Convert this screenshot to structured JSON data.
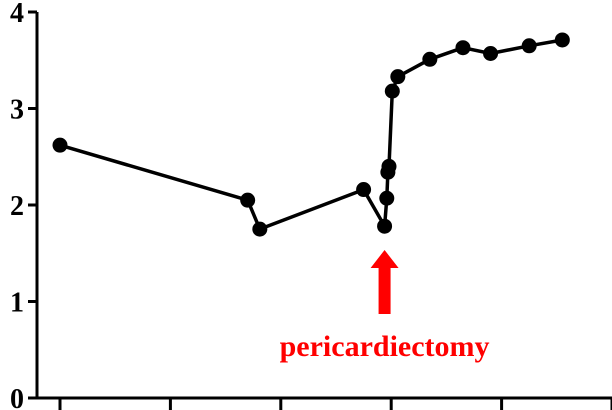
{
  "chart_data": {
    "type": "line",
    "title": "",
    "xlabel": "",
    "ylabel": "",
    "ylim": [
      0,
      4
    ],
    "xlim": [
      0,
      50
    ],
    "y_ticks": [
      0,
      1,
      2,
      3,
      4
    ],
    "y_tick_labels": [
      "0",
      "1",
      "2",
      "3",
      "4"
    ],
    "x_ticks": [
      0,
      10,
      20,
      30,
      40,
      50
    ],
    "grid": false,
    "legend": "none",
    "series": [
      {
        "color": "#000000",
        "marker": "circle",
        "points": [
          {
            "x": 0.0,
            "y": 2.62
          },
          {
            "x": 17.0,
            "y": 2.05
          },
          {
            "x": 18.1,
            "y": 1.75
          },
          {
            "x": 27.5,
            "y": 2.16
          },
          {
            "x": 29.4,
            "y": 1.78
          },
          {
            "x": 29.6,
            "y": 2.07
          },
          {
            "x": 29.7,
            "y": 2.34
          },
          {
            "x": 29.8,
            "y": 2.4
          },
          {
            "x": 30.1,
            "y": 3.18
          },
          {
            "x": 30.6,
            "y": 3.33
          },
          {
            "x": 33.5,
            "y": 3.51
          },
          {
            "x": 36.5,
            "y": 3.63
          },
          {
            "x": 39.0,
            "y": 3.57
          },
          {
            "x": 42.5,
            "y": 3.65
          },
          {
            "x": 45.5,
            "y": 3.71
          }
        ]
      }
    ],
    "annotations": [
      {
        "text": "pericardiectomy",
        "color": "#ff0000",
        "x": 29.4,
        "arrow": "up"
      }
    ]
  }
}
